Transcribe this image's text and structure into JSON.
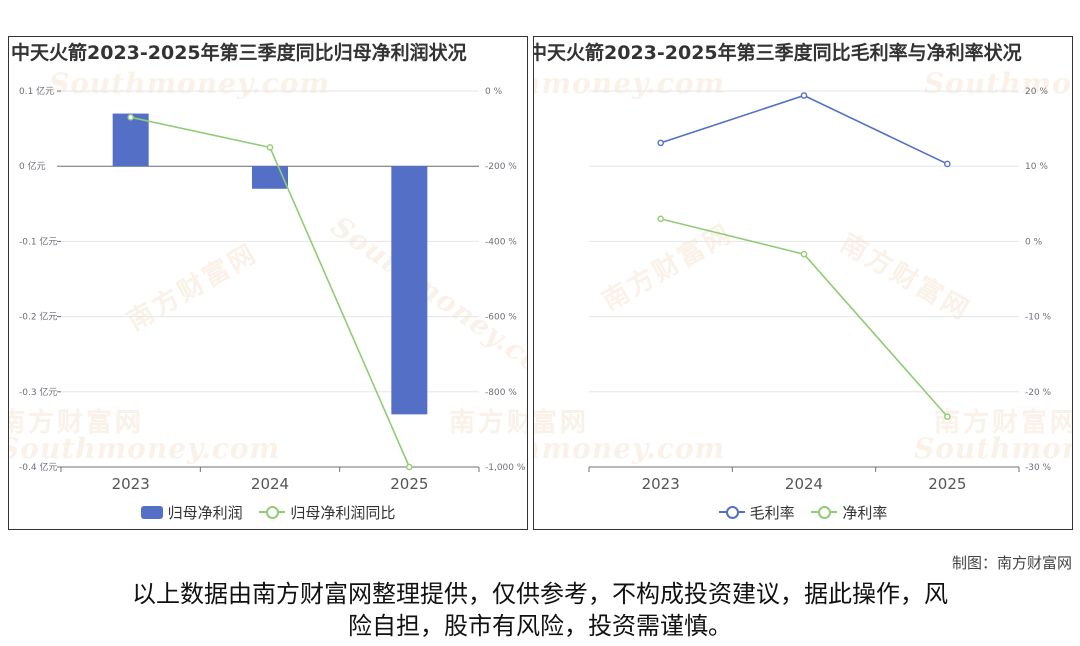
{
  "watermark": {
    "cn": "南方财富网",
    "latin": "Southmoney.com"
  },
  "credit": "制图：南方财富网",
  "disclaimer_line1": "以上数据由南方财富网整理提供，仅供参考，不构成投资建议，据此操作，风",
  "disclaimer_line2": "险自担，股市有风险，投资需谨慎。",
  "colors": {
    "bar": "#5470c6",
    "line_blue": "#5470c6",
    "line_green": "#91cc75",
    "grid": "#e6e6e6",
    "axis": "#6e7079"
  },
  "chart_data": [
    {
      "type": "bar",
      "title": "中天火箭2023-2025年第三季度同比归母净利润状况",
      "categories": [
        "2023",
        "2024",
        "2025"
      ],
      "left_axis": {
        "ylim": [
          -0.4,
          0.1
        ],
        "ticks": [
          0.1,
          0,
          -0.1,
          -0.2,
          -0.3,
          -0.4
        ],
        "tick_labels": [
          "0.1 亿元",
          "0 亿元",
          "-0.1 亿元",
          "-0.2 亿元",
          "-0.3 亿元",
          "-0.4 亿元"
        ]
      },
      "right_axis": {
        "ylim": [
          -1000,
          0
        ],
        "ticks": [
          0,
          -200,
          -400,
          -600,
          -800,
          -1000
        ],
        "tick_labels": [
          "0 %",
          "-200 %",
          "-400 %",
          "-600 %",
          "-800 %",
          "-1,000 %"
        ]
      },
      "series": [
        {
          "name": "归母净利润",
          "type": "bar",
          "axis": "left",
          "values": [
            0.07,
            -0.03,
            -0.33
          ]
        },
        {
          "name": "归母净利润同比",
          "type": "line",
          "axis": "right",
          "values": [
            -70,
            -150,
            -1000
          ]
        }
      ],
      "legend_position": "bottom",
      "grid": true
    },
    {
      "type": "line",
      "title": "中天火箭2023-2025年第三季度同比毛利率与净利率状况",
      "categories": [
        "2023",
        "2024",
        "2025"
      ],
      "right_axis": {
        "ylim": [
          -30,
          20
        ],
        "ticks": [
          20,
          10,
          0,
          -10,
          -20,
          -30
        ],
        "tick_labels": [
          "20 %",
          "10 %",
          "0 %",
          "-10 %",
          "-20 %",
          "-30 %"
        ]
      },
      "series": [
        {
          "name": "毛利率",
          "type": "line",
          "values": [
            13.1,
            19.4,
            10.3
          ]
        },
        {
          "name": "净利率",
          "type": "line",
          "values": [
            3.0,
            -1.7,
            -23.3
          ]
        }
      ],
      "legend_position": "bottom",
      "grid": true
    }
  ]
}
